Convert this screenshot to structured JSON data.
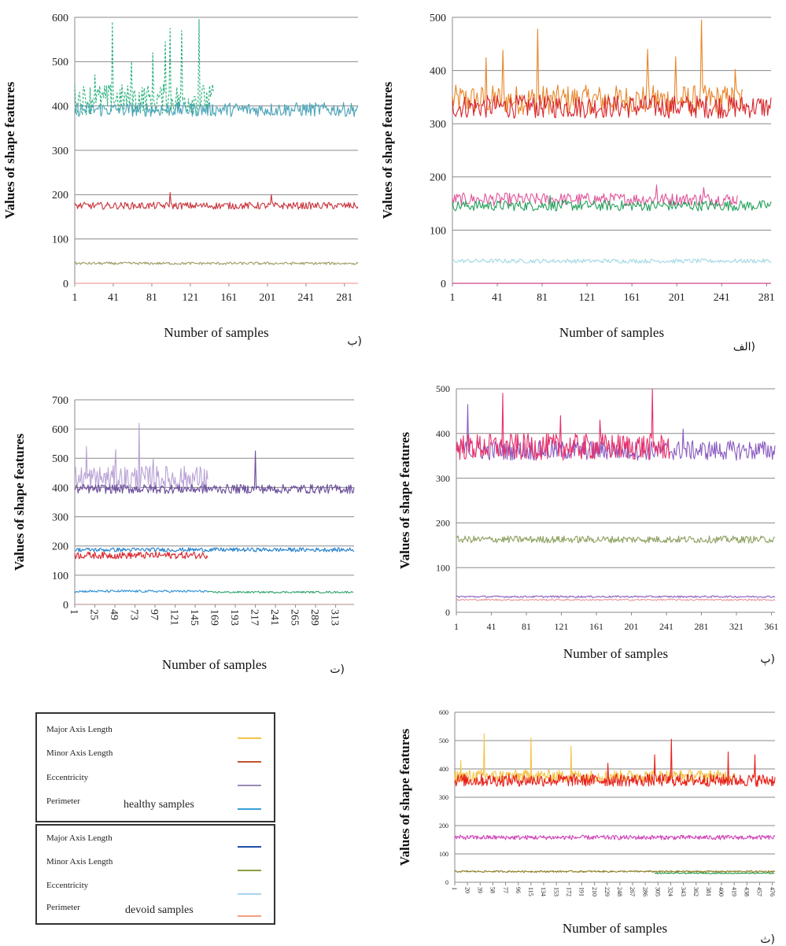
{
  "chart_data": [
    {
      "id": "alef",
      "type": "line",
      "caption": "الف)",
      "xlabel": "Number of samples",
      "ylabel": "Values of shape features",
      "xticks": [
        "1",
        "41",
        "81",
        "121",
        "161",
        "201",
        "241",
        "281"
      ],
      "xlim": [
        1,
        285
      ],
      "yticks": [
        0,
        100,
        200,
        300,
        400,
        500
      ],
      "ylim": [
        0,
        500
      ],
      "series": [
        {
          "color": "#e8862a",
          "start": 1,
          "n": 260,
          "base": 345,
          "amp": 28,
          "spikes": [
            [
              77,
              478
            ],
            [
              223,
              495
            ],
            [
              175,
              440
            ],
            [
              46,
              438
            ],
            [
              31,
              424
            ],
            [
              200,
              426
            ],
            [
              253,
              402
            ],
            [
              279,
              395
            ]
          ]
        },
        {
          "color": "#d8232a",
          "start": 1,
          "n": 285,
          "base": 332,
          "amp": 22,
          "spikes": []
        },
        {
          "color": "#e0559b",
          "start": 1,
          "n": 255,
          "base": 158,
          "amp": 12,
          "spikes": [
            [
              183,
              185
            ],
            [
              225,
              180
            ]
          ]
        },
        {
          "color": "#22a05a",
          "start": 1,
          "n": 285,
          "base": 146,
          "amp": 10,
          "spikes": [
            [
              88,
              165
            ]
          ]
        },
        {
          "color": "#9fd8e4",
          "start": 1,
          "n": 285,
          "base": 42,
          "amp": 4,
          "spikes": []
        },
        {
          "color": "#c21a6e",
          "start": 1,
          "n": 285,
          "base": 0,
          "amp": 0,
          "spikes": []
        }
      ]
    },
    {
      "id": "be",
      "type": "line",
      "caption": "ب)",
      "xlabel": "Number of samples",
      "ylabel": "Values of shape features",
      "xticks": [
        "1",
        "41",
        "81",
        "121",
        "161",
        "201",
        "241",
        "281"
      ],
      "xlim": [
        1,
        295
      ],
      "yticks": [
        0,
        100,
        200,
        300,
        400,
        500,
        600
      ],
      "ylim": [
        0,
        600
      ],
      "series": [
        {
          "color": "#27b07a",
          "dash": "3 2",
          "start": 1,
          "n": 145,
          "base": 415,
          "amp": 35,
          "spikes": [
            [
              40,
              590
            ],
            [
              130,
              595
            ],
            [
              100,
              575
            ],
            [
              112,
              570
            ],
            [
              82,
              520
            ],
            [
              95,
              545
            ],
            [
              22,
              470
            ],
            [
              60,
              500
            ]
          ]
        },
        {
          "color": "#4aa3b8",
          "start": 1,
          "n": 295,
          "base": 392,
          "amp": 16,
          "spikes": []
        },
        {
          "color": "#c8323a",
          "start": 1,
          "n": 295,
          "base": 175,
          "amp": 8,
          "spikes": [
            [
              100,
              205
            ],
            [
              205,
              200
            ]
          ]
        },
        {
          "color": "#9a9a60",
          "start": 1,
          "n": 295,
          "base": 45,
          "amp": 3,
          "spikes": []
        },
        {
          "color": "#f28a8a",
          "start": 1,
          "n": 295,
          "base": 0,
          "amp": 0,
          "spikes": []
        }
      ]
    },
    {
      "id": "pe",
      "type": "line",
      "caption": "پ)",
      "xlabel": "Number of samples",
      "ylabel": "Values of shape features",
      "xticks": [
        "1",
        "41",
        "81",
        "121",
        "161",
        "201",
        "241",
        "281",
        "321",
        "361"
      ],
      "xlim": [
        1,
        365
      ],
      "yticks": [
        0,
        100,
        200,
        300,
        400,
        500
      ],
      "ylim": [
        0,
        500
      ],
      "series": [
        {
          "color": "#8a5cc0",
          "start": 1,
          "n": 365,
          "base": 362,
          "amp": 22,
          "spikes": [
            [
              14,
              465
            ],
            [
              260,
              410
            ]
          ]
        },
        {
          "color": "#e8306a",
          "start": 1,
          "n": 245,
          "base": 370,
          "amp": 30,
          "spikes": [
            [
              54,
              490
            ],
            [
              225,
              500
            ],
            [
              120,
              440
            ],
            [
              165,
              430
            ]
          ]
        },
        {
          "color": "#8da060",
          "start": 1,
          "n": 365,
          "base": 163,
          "amp": 8,
          "spikes": []
        },
        {
          "color": "#8a5cc0",
          "start": 1,
          "n": 365,
          "base": 35,
          "amp": 2,
          "spikes": []
        },
        {
          "color": "#e89aa0",
          "start": 1,
          "n": 365,
          "base": 28,
          "amp": 2,
          "spikes": []
        }
      ]
    },
    {
      "id": "te",
      "type": "line",
      "caption": "ت)",
      "xlabel": "Number of samples",
      "ylabel": "Values of shape features",
      "xticks": [
        "1",
        "25",
        "49",
        "73",
        "97",
        "121",
        "145",
        "169",
        "193",
        "217",
        "241",
        "265",
        "289",
        "313"
      ],
      "xlim": [
        1,
        335
      ],
      "yticks": [
        0,
        100,
        200,
        300,
        400,
        500,
        600,
        700
      ],
      "ylim": [
        0,
        700
      ],
      "series": [
        {
          "color": "#b9a3d6",
          "start": 1,
          "n": 160,
          "base": 430,
          "amp": 45,
          "spikes": [
            [
              78,
              620
            ],
            [
              15,
              540
            ],
            [
              50,
              530
            ],
            [
              95,
              500
            ]
          ]
        },
        {
          "color": "#6a4e9a",
          "start": 1,
          "n": 335,
          "base": 395,
          "amp": 16,
          "spikes": [
            [
              217,
              525
            ]
          ]
        },
        {
          "color": "#1f7fcc",
          "start": 1,
          "n": 335,
          "base": 187,
          "amp": 7,
          "spikes": []
        },
        {
          "color": "#d8232a",
          "start": 1,
          "n": 160,
          "base": 168,
          "amp": 12,
          "spikes": []
        },
        {
          "color": "#2a8fd8",
          "start": 1,
          "n": 160,
          "base": 45,
          "amp": 4,
          "spikes": []
        },
        {
          "color": "#2aa06a",
          "start": 160,
          "n": 175,
          "base": 42,
          "amp": 3,
          "spikes": []
        },
        {
          "color": "#b08a8a",
          "start": 1,
          "n": 335,
          "base": 0,
          "amp": 0,
          "spikes": []
        }
      ]
    },
    {
      "id": "the",
      "type": "line",
      "caption": "ث)",
      "xlabel": "Number of samples",
      "ylabel": "Values of shape features",
      "xticks": [
        "1",
        "20",
        "39",
        "58",
        "77",
        "96",
        "115",
        "134",
        "153",
        "172",
        "191",
        "210",
        "229",
        "248",
        "267",
        "286",
        "305",
        "324",
        "343",
        "362",
        "381",
        "400",
        "419",
        "438",
        "457",
        "476"
      ],
      "xlim": [
        1,
        480
      ],
      "yticks": [
        0,
        100,
        200,
        300,
        400,
        500,
        600
      ],
      "ylim": [
        0,
        600
      ],
      "series": [
        {
          "color": "#f3c44a",
          "start": 1,
          "n": 420,
          "base": 375,
          "amp": 22,
          "spikes": [
            [
              45,
              525
            ],
            [
              115,
              510
            ],
            [
              175,
              480
            ],
            [
              10,
              430
            ]
          ]
        },
        {
          "color": "#e8201a",
          "start": 1,
          "n": 480,
          "base": 360,
          "amp": 22,
          "spikes": [
            [
              325,
              505
            ],
            [
              300,
              450
            ],
            [
              410,
              460
            ],
            [
              450,
              450
            ],
            [
              230,
              420
            ]
          ]
        },
        {
          "color": "#d047b8",
          "start": 1,
          "n": 480,
          "base": 158,
          "amp": 8,
          "spikes": []
        },
        {
          "color": "#8a7a20",
          "start": 1,
          "n": 480,
          "base": 38,
          "amp": 3,
          "spikes": []
        },
        {
          "color": "#2a9a4a",
          "start": 300,
          "n": 180,
          "base": 32,
          "amp": 2,
          "spikes": []
        }
      ]
    }
  ],
  "legend": {
    "healthy": {
      "note": "healthy  samples",
      "items": [
        {
          "label": "Major Axis Length",
          "color": "#f3c44a"
        },
        {
          "label": "Minor Axis Length",
          "color": "#c0552a"
        },
        {
          "label": "Eccentricity",
          "color": "#9a8ab8"
        },
        {
          "label": "Perimeter",
          "color": "#3aa0d8"
        }
      ]
    },
    "devoid": {
      "note": "devoid samples",
      "items": [
        {
          "label": "Major Axis Length",
          "color": "#1f4fa8"
        },
        {
          "label": "Minor Axis Length",
          "color": "#8aa040"
        },
        {
          "label": "Eccentricity",
          "color": "#a8d4ec"
        },
        {
          "label": "Perimeter",
          "color": "#f0a080"
        }
      ]
    }
  }
}
